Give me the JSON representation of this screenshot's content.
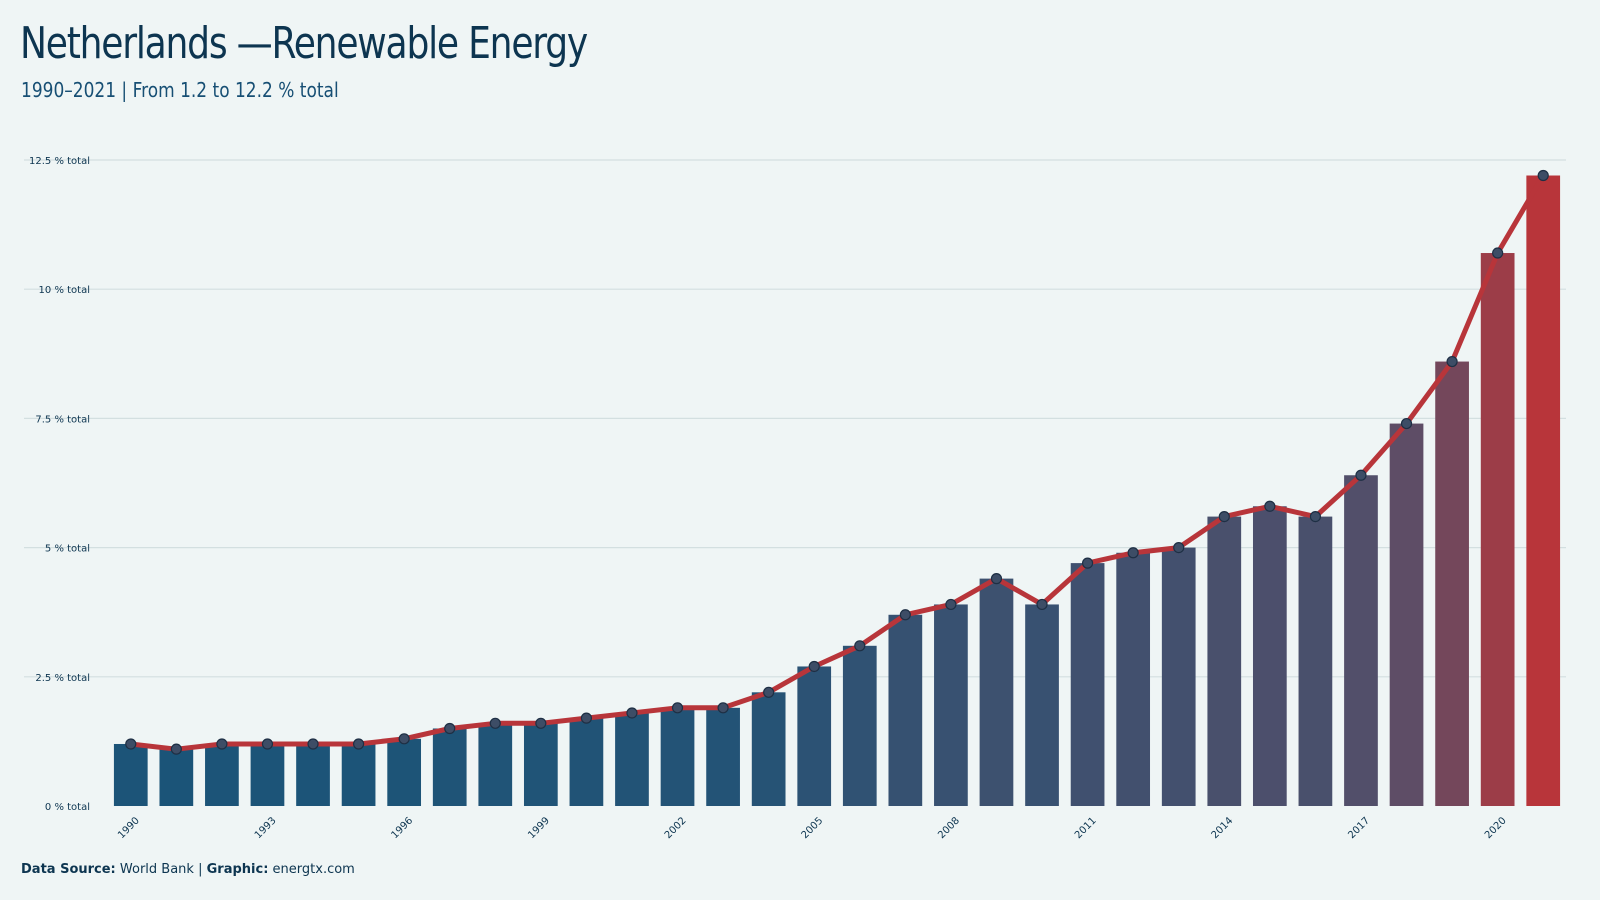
{
  "header": {
    "title": "Netherlands —Renewable Energy",
    "subtitle": "1990–2021 | From 1.2 to 12.2 % total"
  },
  "footer": {
    "source_label": "Data Source:",
    "source_value": "World Bank",
    "separator": "|",
    "graphic_label": "Graphic:",
    "graphic_value": "energtx.com"
  },
  "colors": {
    "background": "#eff5f5",
    "bar_start": "#1b5478",
    "bar_mid": "#5a4e68",
    "bar_end": "#b8353a",
    "line": "#b8353a",
    "marker_fill": "#3d4d66",
    "grid": "#d3dfe0",
    "text": "#0d3550"
  },
  "chart_data": {
    "type": "bar",
    "overlay": "line",
    "title": "Netherlands —Renewable Energy",
    "subtitle": "1990–2021 | From 1.2 to 12.2 % total",
    "xlabel": "",
    "ylabel": "",
    "ylim": [
      0,
      12.5
    ],
    "grid": true,
    "categories": [
      1990,
      1991,
      1992,
      1993,
      1994,
      1995,
      1996,
      1997,
      1998,
      1999,
      2000,
      2001,
      2002,
      2003,
      2004,
      2005,
      2006,
      2007,
      2008,
      2009,
      2010,
      2011,
      2012,
      2013,
      2014,
      2015,
      2016,
      2017,
      2018,
      2019,
      2020,
      2021
    ],
    "values": [
      1.2,
      1.1,
      1.2,
      1.2,
      1.2,
      1.2,
      1.3,
      1.5,
      1.6,
      1.6,
      1.7,
      1.8,
      1.9,
      1.9,
      2.2,
      2.7,
      3.1,
      3.7,
      3.9,
      4.4,
      3.9,
      4.7,
      4.9,
      5.0,
      5.6,
      5.8,
      5.6,
      6.4,
      7.4,
      8.6,
      10.7,
      12.2
    ],
    "x_tick_labels": [
      "1990",
      "1993",
      "1996",
      "1999",
      "2002",
      "2005",
      "2008",
      "2011",
      "2014",
      "2017",
      "2020"
    ],
    "y_ticks": [
      0,
      2.5,
      5,
      7.5,
      10,
      12.5
    ],
    "y_tick_labels": [
      "0 % total",
      "2.5 % total",
      "5 % total",
      "7.5 % total",
      "10 % total",
      "12.5 % total"
    ]
  }
}
